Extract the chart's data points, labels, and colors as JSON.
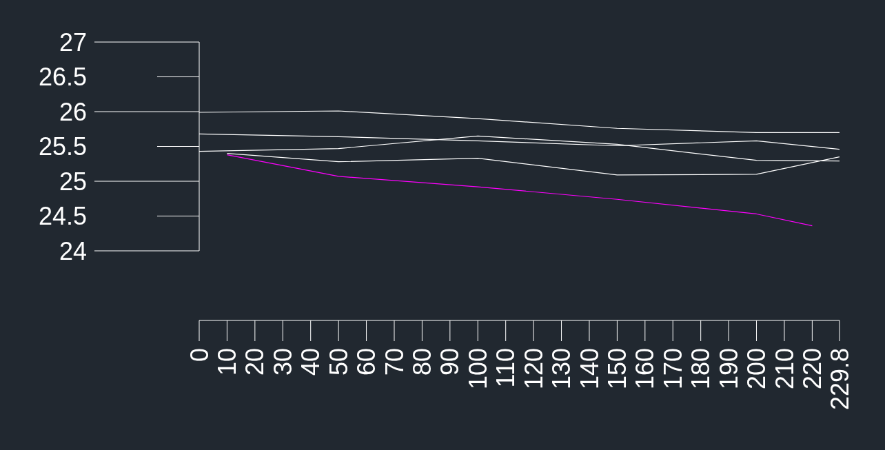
{
  "chart_data": {
    "type": "line",
    "x": [
      0,
      50,
      100,
      150,
      200,
      229.8
    ],
    "series": [
      {
        "color": "#ffffff",
        "values": [
          25.99,
          26.01,
          25.9,
          25.76,
          25.7,
          25.7
        ]
      },
      {
        "color": "#ffffff",
        "values": [
          25.68,
          25.64,
          25.58,
          25.51,
          25.58,
          25.46
        ]
      },
      {
        "color": "#ffffff",
        "values": [
          25.43,
          25.47,
          25.65,
          25.53,
          25.3,
          25.29
        ]
      },
      {
        "color": "#ffffff",
        "x": [
          10,
          50,
          100,
          150,
          200,
          229.8
        ],
        "values": [
          25.4,
          25.28,
          25.33,
          25.09,
          25.1,
          25.35
        ]
      },
      {
        "color": "#ff00ff",
        "x": [
          10,
          50,
          100,
          150,
          200,
          220
        ],
        "values": [
          25.38,
          25.07,
          24.92,
          24.74,
          24.53,
          24.36
        ]
      }
    ],
    "xlim": [
      0,
      229.8
    ],
    "ylim": [
      24,
      27
    ],
    "xticks": [
      0,
      10,
      20,
      30,
      40,
      50,
      60,
      70,
      80,
      90,
      100,
      110,
      120,
      130,
      140,
      150,
      160,
      170,
      180,
      190,
      200,
      210,
      220,
      229.8
    ],
    "yticks": [
      24,
      24.5,
      25,
      25.5,
      26,
      26.5,
      27
    ],
    "grid": false,
    "marker": "none",
    "line_style": "solid"
  }
}
